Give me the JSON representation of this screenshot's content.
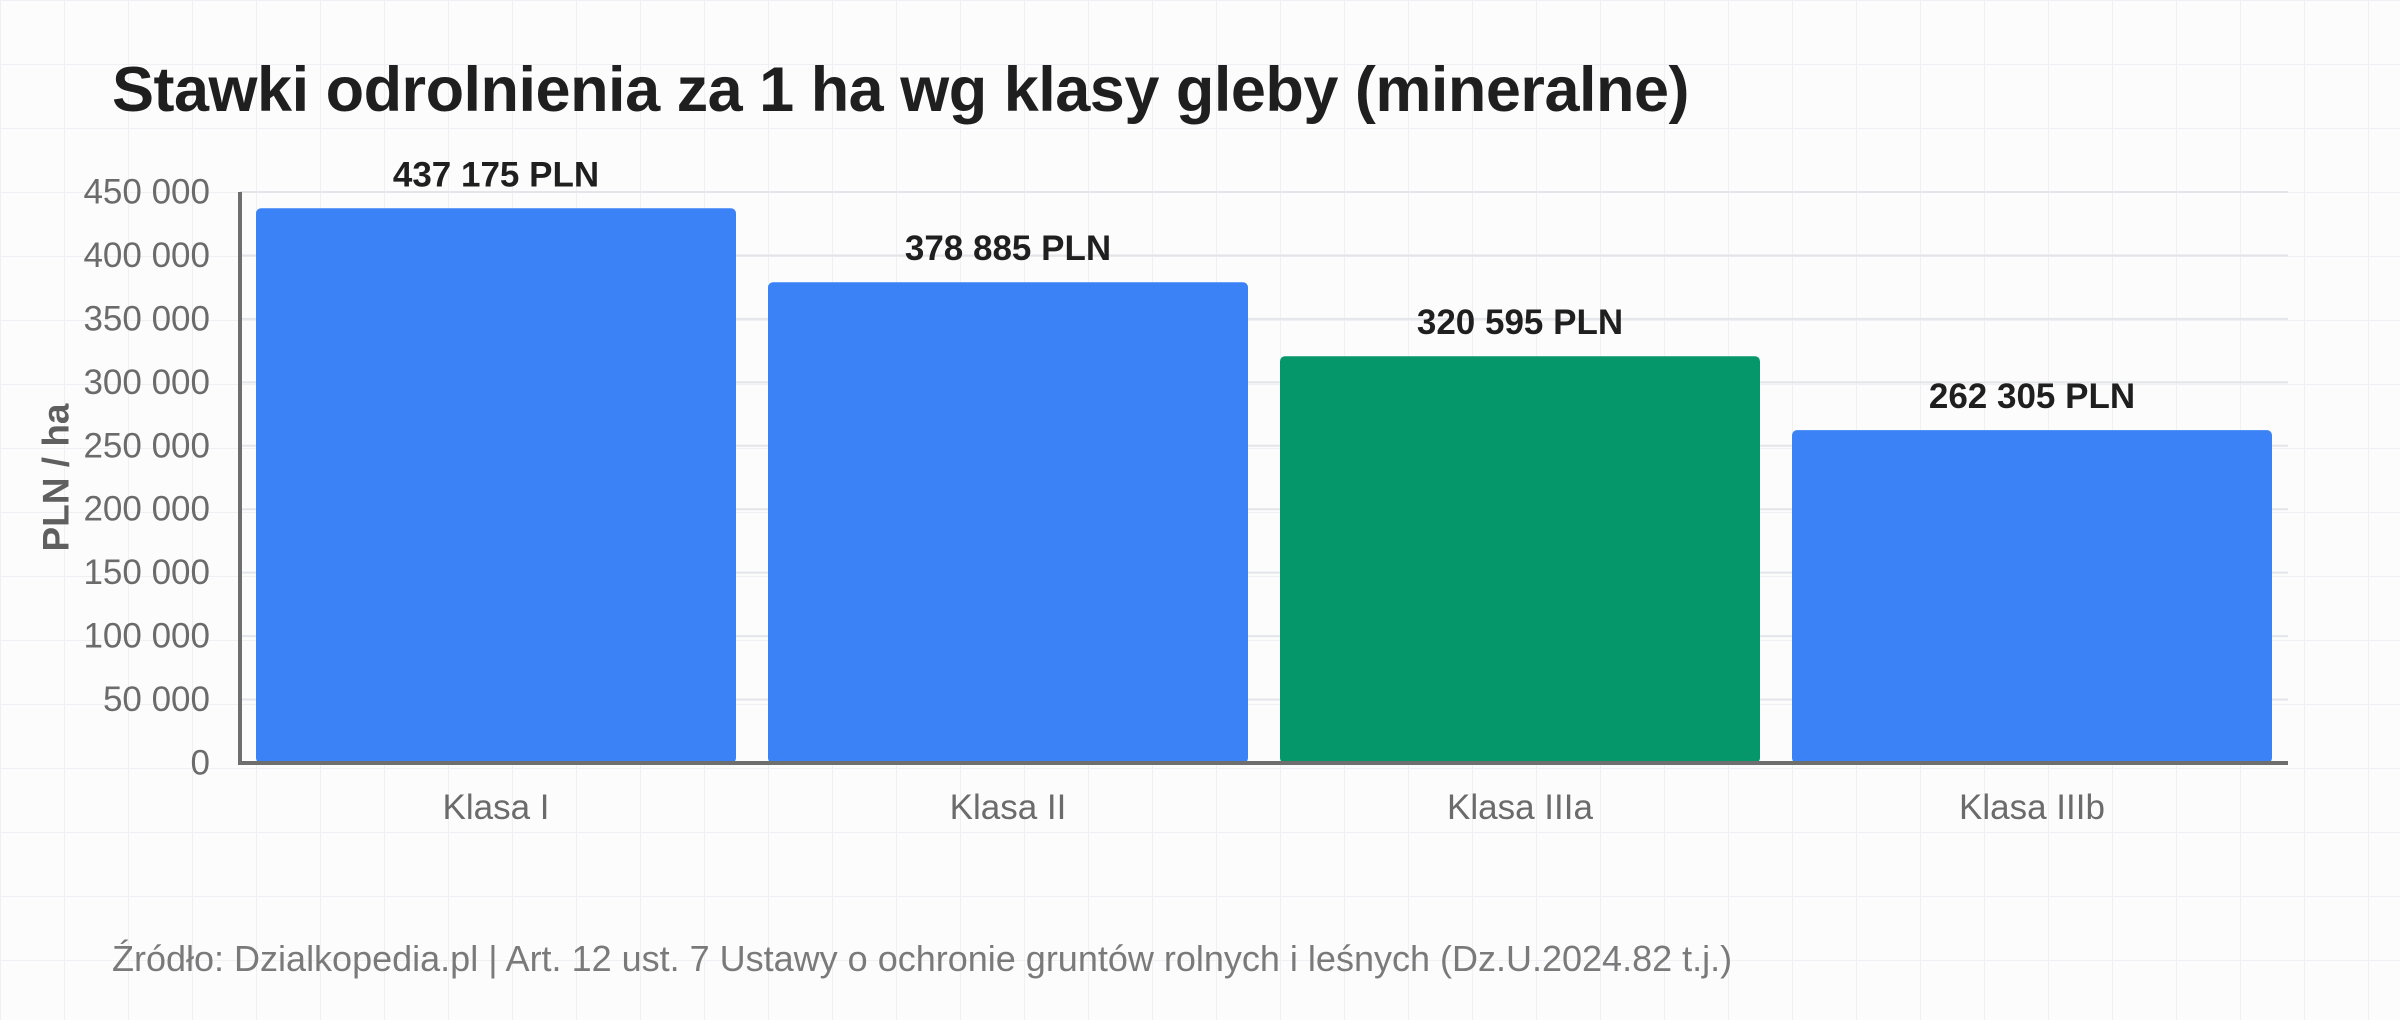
{
  "chart_data": {
    "type": "bar",
    "title": "Stawki odrolnienia za 1 ha wg klasy gleby (mineralne)",
    "ylabel": "PLN / ha",
    "xlabel": "",
    "categories": [
      "Klasa I",
      "Klasa II",
      "Klasa IIIa",
      "Klasa IIIb"
    ],
    "values": [
      437175,
      378885,
      320595,
      262305
    ],
    "data_labels": [
      "437 175 PLN",
      "378 885 PLN",
      "320 595 PLN",
      "262 305 PLN"
    ],
    "bar_colors": [
      "#3b82f6",
      "#3b82f6",
      "#059669",
      "#3b82f6"
    ],
    "ylim": [
      0,
      450000
    ],
    "yticks": [
      0,
      50000,
      100000,
      150000,
      200000,
      250000,
      300000,
      350000,
      400000,
      450000
    ],
    "ytick_labels": [
      "0",
      "50 000",
      "100 000",
      "150 000",
      "200 000",
      "250 000",
      "300 000",
      "350 000",
      "400 000",
      "450 000"
    ],
    "grid": true,
    "legend": "none"
  },
  "source": "Źródło: Dzialkopedia.pl | Art. 12 ust. 7 Ustawy o ochronie gruntów rolnych i leśnych (Dz.U.2024.82 t.j.)"
}
